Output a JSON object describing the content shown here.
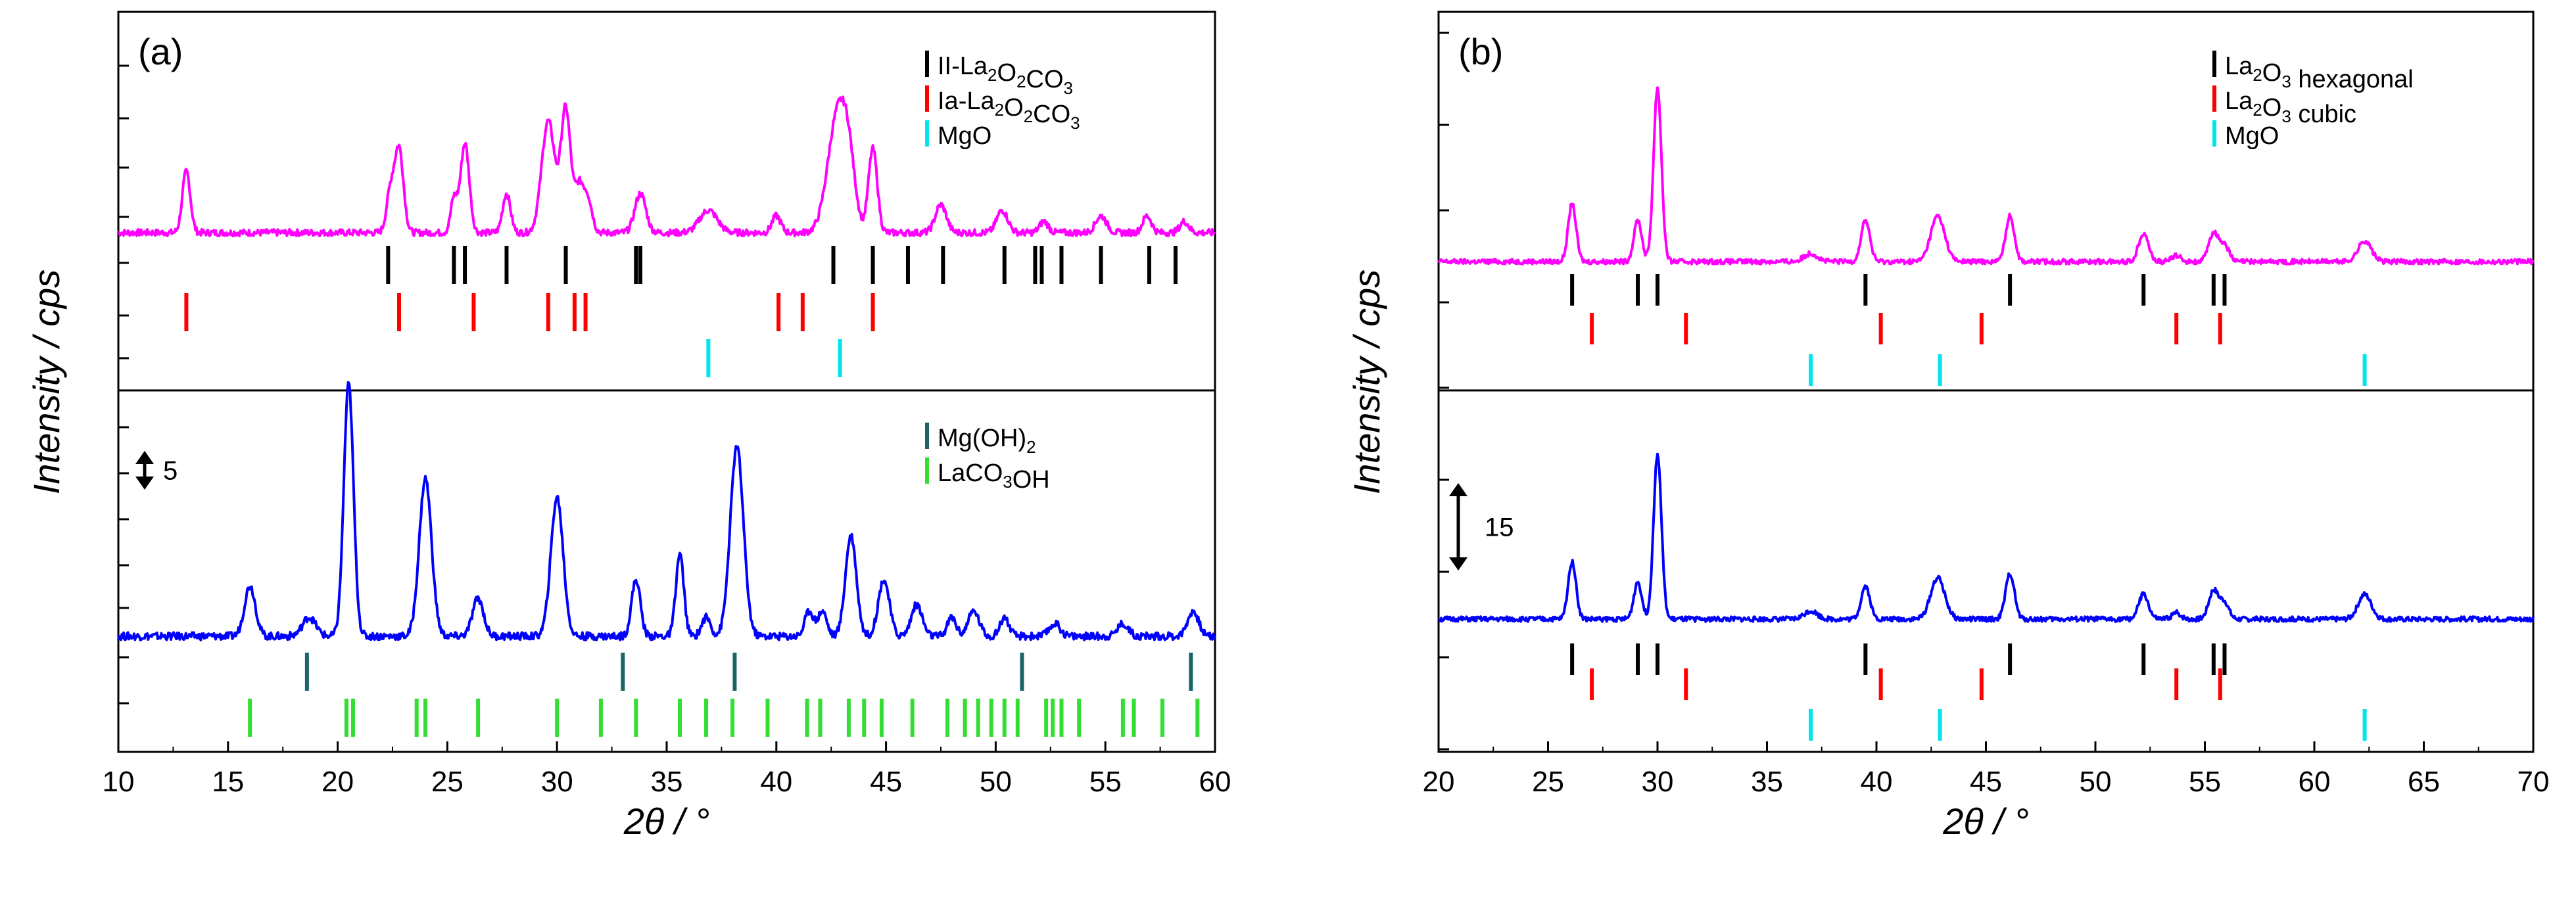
{
  "chart_data": [
    {
      "type": "line",
      "panel_label": "(a)",
      "xlabel": "2θ / °",
      "ylabel": "Intensity / cps",
      "xlim": [
        10,
        60
      ],
      "xticks": [
        10,
        15,
        20,
        25,
        30,
        35,
        40,
        45,
        50,
        55,
        60
      ],
      "scale_bar": "5",
      "subplots": [
        {
          "series": {
            "name": "top pattern",
            "color": "#ff00ff",
            "baseline": 0,
            "peaks": [
              {
                "x": 13.1,
                "h": 11,
                "w": 0.18
              },
              {
                "x": 22.4,
                "h": 7,
                "w": 0.18
              },
              {
                "x": 22.8,
                "h": 15,
                "w": 0.2
              },
              {
                "x": 25.3,
                "h": 6,
                "w": 0.15
              },
              {
                "x": 25.8,
                "h": 16,
                "w": 0.2
              },
              {
                "x": 27.7,
                "h": 7,
                "w": 0.18
              },
              {
                "x": 29.6,
                "h": 20,
                "w": 0.3
              },
              {
                "x": 30.4,
                "h": 22,
                "w": 0.22
              },
              {
                "x": 31.0,
                "h": 8,
                "w": 0.2
              },
              {
                "x": 31.4,
                "h": 6,
                "w": 0.2
              },
              {
                "x": 33.8,
                "h": 7,
                "w": 0.25
              },
              {
                "x": 36.9,
                "h": 4,
                "w": 0.4
              },
              {
                "x": 40.0,
                "h": 3,
                "w": 0.2
              },
              {
                "x": 42.8,
                "h": 21,
                "w": 0.45
              },
              {
                "x": 43.3,
                "h": 8,
                "w": 0.3
              },
              {
                "x": 44.4,
                "h": 15,
                "w": 0.2
              },
              {
                "x": 47.5,
                "h": 5,
                "w": 0.25
              },
              {
                "x": 50.3,
                "h": 4,
                "w": 0.25
              },
              {
                "x": 52.2,
                "h": 2,
                "w": 0.2
              },
              {
                "x": 54.8,
                "h": 3,
                "w": 0.25
              },
              {
                "x": 56.9,
                "h": 3,
                "w": 0.2
              },
              {
                "x": 58.6,
                "h": 2,
                "w": 0.2
              }
            ]
          },
          "reference_rows": [
            {
              "name": "II-La2O2CO3",
              "color": "#000000",
              "positions": [
                22.3,
                25.3,
                25.8,
                27.7,
                30.4,
                33.6,
                33.8,
                42.6,
                44.4,
                46.0,
                47.6,
                50.4,
                51.8,
                52.1,
                53.0,
                54.8,
                57.0,
                58.2
              ]
            },
            {
              "name": "Ia-La2O2CO3",
              "color": "#ff0000",
              "positions": [
                13.1,
                22.8,
                26.2,
                29.6,
                30.8,
                31.3,
                40.1,
                41.2,
                44.4
              ]
            },
            {
              "name": "MgO",
              "color": "#00e5ee",
              "positions": [
                36.9,
                42.9
              ]
            }
          ]
        },
        {
          "series": {
            "name": "bottom pattern",
            "color": "#0000ff",
            "baseline": 0,
            "peaks": [
              {
                "x": 16.0,
                "h": 8,
                "w": 0.25
              },
              {
                "x": 18.7,
                "h": 3,
                "w": 0.3
              },
              {
                "x": 20.5,
                "h": 40,
                "w": 0.22
              },
              {
                "x": 24.0,
                "h": 25,
                "w": 0.28
              },
              {
                "x": 26.4,
                "h": 6,
                "w": 0.25
              },
              {
                "x": 30.0,
                "h": 22,
                "w": 0.28
              },
              {
                "x": 33.6,
                "h": 9,
                "w": 0.2
              },
              {
                "x": 35.6,
                "h": 13,
                "w": 0.18
              },
              {
                "x": 36.8,
                "h": 3,
                "w": 0.2
              },
              {
                "x": 38.2,
                "h": 30,
                "w": 0.3
              },
              {
                "x": 41.5,
                "h": 4,
                "w": 0.2
              },
              {
                "x": 42.1,
                "h": 4,
                "w": 0.2
              },
              {
                "x": 43.4,
                "h": 16,
                "w": 0.25
              },
              {
                "x": 44.9,
                "h": 9,
                "w": 0.25
              },
              {
                "x": 46.4,
                "h": 5,
                "w": 0.25
              },
              {
                "x": 48.0,
                "h": 3,
                "w": 0.2
              },
              {
                "x": 49.0,
                "h": 4,
                "w": 0.25
              },
              {
                "x": 50.4,
                "h": 3,
                "w": 0.2
              },
              {
                "x": 52.7,
                "h": 2,
                "w": 0.25
              },
              {
                "x": 55.8,
                "h": 2,
                "w": 0.25
              },
              {
                "x": 59.0,
                "h": 4,
                "w": 0.25
              }
            ]
          },
          "reference_rows": [
            {
              "name": "Mg(OH)2",
              "color": "#1a6666",
              "positions": [
                18.6,
                33.0,
                38.1,
                51.2,
                58.9
              ]
            },
            {
              "name": "LaCO3OH",
              "color": "#33dd33",
              "positions": [
                16.0,
                20.4,
                20.7,
                23.6,
                24.0,
                26.4,
                30.0,
                32.0,
                33.6,
                35.6,
                36.8,
                38.0,
                39.6,
                41.4,
                42.0,
                43.3,
                44.0,
                44.8,
                46.2,
                47.8,
                48.6,
                49.2,
                49.8,
                50.4,
                51.0,
                52.3,
                52.6,
                53.0,
                53.8,
                55.8,
                56.3,
                57.6,
                59.2
              ]
            }
          ]
        }
      ],
      "legend": [
        {
          "subplot": 0,
          "entries": [
            {
              "label": "II-La",
              "sub1": "2",
              "mid": "O",
              "sub2": "2",
              "tail": "CO",
              "sub3": "3",
              "color": "#000000"
            },
            {
              "label": "Ia-La",
              "sub1": "2",
              "mid": "O",
              "sub2": "2",
              "tail": "CO",
              "sub3": "3",
              "color": "#ff0000"
            },
            {
              "label": "MgO",
              "color": "#00e5ee"
            }
          ]
        },
        {
          "subplot": 1,
          "entries": [
            {
              "label": "Mg(OH)",
              "sub1": "2",
              "color": "#1a6666"
            },
            {
              "label": "LaCO",
              "sub1": "3",
              "mid": "OH",
              "color": "#33dd33"
            }
          ]
        }
      ]
    },
    {
      "type": "line",
      "panel_label": "(b)",
      "xlabel": "2θ / °",
      "ylabel": "Intensity / cps",
      "xlim": [
        20,
        70
      ],
      "xticks": [
        20,
        25,
        30,
        35,
        40,
        45,
        50,
        55,
        60,
        65,
        70
      ],
      "scale_bar": "15",
      "subplots": [
        {
          "series": {
            "name": "top pattern",
            "color": "#ff00ff",
            "baseline": 0,
            "peaks": [
              {
                "x": 26.1,
                "h": 14,
                "w": 0.18
              },
              {
                "x": 29.1,
                "h": 10,
                "w": 0.18
              },
              {
                "x": 30.0,
                "h": 42,
                "w": 0.18
              },
              {
                "x": 37.0,
                "h": 2,
                "w": 0.3
              },
              {
                "x": 39.5,
                "h": 10,
                "w": 0.2
              },
              {
                "x": 42.8,
                "h": 11,
                "w": 0.32
              },
              {
                "x": 46.1,
                "h": 11,
                "w": 0.2
              },
              {
                "x": 52.2,
                "h": 7,
                "w": 0.22
              },
              {
                "x": 53.7,
                "h": 1.5,
                "w": 0.2
              },
              {
                "x": 55.4,
                "h": 7,
                "w": 0.22
              },
              {
                "x": 55.9,
                "h": 4,
                "w": 0.2
              },
              {
                "x": 62.3,
                "h": 5,
                "w": 0.3
              }
            ]
          },
          "reference_rows": [
            {
              "name": "La2O3 hexagonal",
              "color": "#000000",
              "positions": [
                26.1,
                29.1,
                30.0,
                39.5,
                46.1,
                52.2,
                55.4,
                55.9
              ]
            },
            {
              "name": "La2O3 cubic",
              "color": "#ff0000",
              "positions": [
                27.0,
                31.3,
                40.2,
                44.8,
                53.7,
                55.7
              ]
            },
            {
              "name": "MgO",
              "color": "#00e5ee",
              "positions": [
                37.0,
                42.9,
                62.3
              ]
            }
          ]
        },
        {
          "series": {
            "name": "bottom pattern",
            "color": "#0000ff",
            "baseline": 0,
            "peaks": [
              {
                "x": 26.1,
                "h": 14,
                "w": 0.18
              },
              {
                "x": 29.1,
                "h": 9,
                "w": 0.18
              },
              {
                "x": 30.0,
                "h": 40,
                "w": 0.18
              },
              {
                "x": 37.0,
                "h": 2,
                "w": 0.3
              },
              {
                "x": 39.5,
                "h": 8,
                "w": 0.2
              },
              {
                "x": 42.8,
                "h": 10,
                "w": 0.32
              },
              {
                "x": 46.1,
                "h": 11,
                "w": 0.2
              },
              {
                "x": 52.2,
                "h": 6,
                "w": 0.22
              },
              {
                "x": 53.7,
                "h": 1.5,
                "w": 0.2
              },
              {
                "x": 55.4,
                "h": 7,
                "w": 0.22
              },
              {
                "x": 55.9,
                "h": 4,
                "w": 0.2
              },
              {
                "x": 62.3,
                "h": 6,
                "w": 0.3
              }
            ]
          },
          "reference_rows": [
            {
              "name": "La2O3 hexagonal",
              "color": "#000000",
              "positions": [
                26.1,
                29.1,
                30.0,
                39.5,
                46.1,
                52.2,
                55.4,
                55.9
              ]
            },
            {
              "name": "La2O3 cubic",
              "color": "#ff0000",
              "positions": [
                27.0,
                31.3,
                40.2,
                44.8,
                53.7,
                55.7
              ]
            },
            {
              "name": "MgO",
              "color": "#00e5ee",
              "positions": [
                37.0,
                42.9,
                62.3
              ]
            }
          ]
        }
      ],
      "legend": [
        {
          "subplot": 0,
          "entries": [
            {
              "label": "La",
              "sub1": "2",
              "mid": "O",
              "sub2": "3",
              "tail": " hexagonal",
              "color": "#000000"
            },
            {
              "label": "La",
              "sub1": "2",
              "mid": "O",
              "sub2": "3",
              "tail": " cubic",
              "color": "#ff0000"
            },
            {
              "label": "MgO",
              "color": "#00e5ee"
            }
          ]
        }
      ]
    }
  ]
}
